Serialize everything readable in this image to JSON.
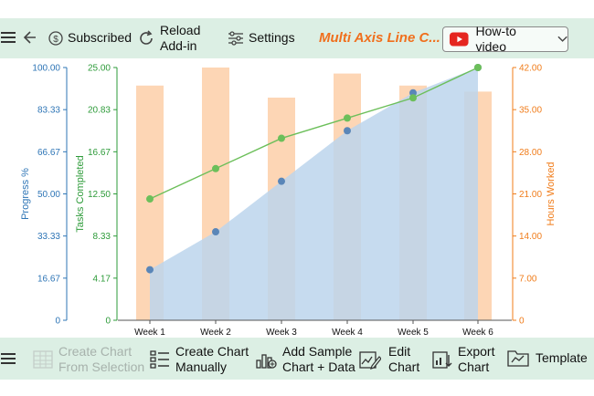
{
  "toolbar": {
    "subscribed_label": "Subscribed",
    "reload_label_1": "Reload",
    "reload_label_2": "Add-in",
    "settings_label": "Settings",
    "title": "Multi Axis Line C...",
    "howto_label": "How-to video"
  },
  "bottom_toolbar": {
    "create_from_selection_1": "Create Chart",
    "create_from_selection_2": "From Selection",
    "create_manually_1": "Create Chart",
    "create_manually_2": "Manually",
    "add_sample_1": "Add Sample",
    "add_sample_2": "Chart + Data",
    "edit_chart_1": "Edit",
    "edit_chart_2": "Chart",
    "export_chart_1": "Export",
    "export_chart_2": "Chart",
    "template_label": "Template"
  },
  "colors": {
    "progress": "#2e75b6",
    "tasks": "#2e9b3a",
    "hours": "#f07c1a",
    "area_fill": "#bcd5ec",
    "bar_fill": "#fdd6b5",
    "line": "#6cbf5a",
    "accent": "#f06f1d",
    "youtube": "#e52620"
  },
  "icons": [
    "menu-icon",
    "back-arrow-icon",
    "dollar-circle-icon",
    "reload-icon",
    "sliders-icon",
    "youtube-icon",
    "chevron-down-icon",
    "table-icon",
    "list-icon",
    "sample-chart-icon",
    "edit-chart-icon",
    "export-chart-icon",
    "template-icon"
  ],
  "chart_data": {
    "type": "line",
    "categories": [
      "Week 1",
      "Week 2",
      "Week 3",
      "Week 4",
      "Week 5",
      "Week 6"
    ],
    "series": [
      {
        "name": "Progress %",
        "kind": "area",
        "axis": "progress",
        "values": [
          20,
          35,
          55,
          75,
          90,
          100
        ]
      },
      {
        "name": "Tasks Completed",
        "kind": "line",
        "axis": "tasks",
        "values": [
          12,
          15,
          18,
          20,
          22,
          25
        ]
      },
      {
        "name": "Hours Worked",
        "kind": "bar",
        "axis": "hours",
        "values": [
          39,
          42,
          37,
          41,
          39,
          38
        ]
      }
    ],
    "axes": {
      "progress": {
        "label": "Progress %",
        "min": 0,
        "max": 100,
        "ticks": [
          "0",
          "16.67",
          "33.33",
          "50.00",
          "66.67",
          "83.33",
          "100.00"
        ]
      },
      "tasks": {
        "label": "Tasks Completed",
        "min": 0,
        "max": 25,
        "ticks": [
          "0",
          "4.17",
          "8.33",
          "12.50",
          "16.67",
          "20.83",
          "25.00"
        ]
      },
      "hours": {
        "label": "Hours Worked",
        "min": 0,
        "max": 42,
        "ticks": [
          "0",
          "7.00",
          "14.00",
          "21.00",
          "28.00",
          "35.00",
          "42.00"
        ]
      }
    },
    "grid": false
  }
}
